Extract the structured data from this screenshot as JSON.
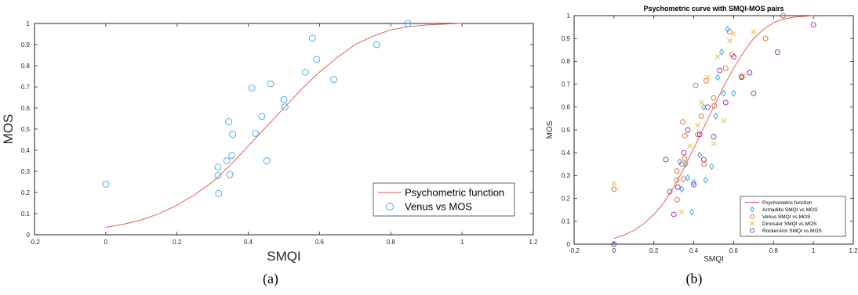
{
  "figure": {
    "caption_a": "(a)",
    "caption_b": "(b)"
  },
  "colors": {
    "curve": "#e0524a",
    "venus_a": "#3fa7e3",
    "armadillo": "#2e9bd6",
    "venus": "#e0682a",
    "dinosaur": "#eab830",
    "rockerarm": "#8a2aa8"
  },
  "chart_data": [
    {
      "type": "scatter",
      "title": "",
      "xlabel": "SMQI",
      "ylabel": "MOS",
      "xlim": [
        -0.2,
        1.2
      ],
      "ylim": [
        0,
        1
      ],
      "xticks": [
        "-0.2",
        "0",
        "0.2",
        "0.4",
        "0.6",
        "0.8",
        "1",
        "1.2"
      ],
      "yticks": [
        "0",
        "0.1",
        "0.2",
        "0.3",
        "0.4",
        "0.5",
        "0.6",
        "0.7",
        "0.8",
        "0.9",
        "1"
      ],
      "grid": false,
      "legend_position": "bottom-right",
      "curve": {
        "name": "Psychometric function",
        "x": [
          0,
          0.05,
          0.1,
          0.15,
          0.2,
          0.25,
          0.3,
          0.35,
          0.4,
          0.45,
          0.5,
          0.55,
          0.6,
          0.65,
          0.7,
          0.75,
          0.8,
          0.85,
          0.9,
          0.95,
          1.0
        ],
        "y": [
          0.035,
          0.05,
          0.07,
          0.1,
          0.14,
          0.19,
          0.25,
          0.33,
          0.42,
          0.51,
          0.6,
          0.69,
          0.77,
          0.84,
          0.9,
          0.94,
          0.97,
          0.985,
          0.993,
          0.997,
          1.0
        ]
      },
      "series": [
        {
          "name": "Venus  vs MOS",
          "marker": "circle",
          "x": [
            0.0,
            0.315,
            0.315,
            0.317,
            0.34,
            0.345,
            0.348,
            0.354,
            0.356,
            0.41,
            0.42,
            0.438,
            0.452,
            0.462,
            0.5,
            0.503,
            0.56,
            0.58,
            0.592,
            0.64,
            0.76,
            0.848
          ],
          "y": [
            0.24,
            0.32,
            0.28,
            0.195,
            0.35,
            0.535,
            0.285,
            0.375,
            0.475,
            0.695,
            0.48,
            0.56,
            0.35,
            0.715,
            0.64,
            0.605,
            0.77,
            0.93,
            0.83,
            0.735,
            0.9,
            1.0
          ]
        }
      ]
    },
    {
      "type": "scatter",
      "title": "Psychometric curve with SMQI-MOS pairs",
      "xlabel": "SMQI",
      "ylabel": "MOS",
      "xlim": [
        -0.2,
        1.2
      ],
      "ylim": [
        0,
        1
      ],
      "xticks": [
        "-0.2",
        "0",
        "0.2",
        "0.4",
        "0.6",
        "0.8",
        "1",
        "1.2"
      ],
      "yticks": [
        "0",
        "0.1",
        "0.2",
        "0.3",
        "0.4",
        "0.5",
        "0.6",
        "0.7",
        "0.8",
        "0.9",
        "1"
      ],
      "grid": false,
      "legend_position": "bottom-right",
      "curve": {
        "name": "Psychometric function",
        "x": [
          0,
          0.05,
          0.1,
          0.15,
          0.2,
          0.25,
          0.3,
          0.35,
          0.4,
          0.45,
          0.5,
          0.55,
          0.6,
          0.65,
          0.7,
          0.75,
          0.8,
          0.85,
          0.9,
          0.95,
          1.0
        ],
        "y": [
          0.025,
          0.04,
          0.06,
          0.09,
          0.13,
          0.18,
          0.25,
          0.33,
          0.42,
          0.51,
          0.6,
          0.69,
          0.77,
          0.84,
          0.9,
          0.94,
          0.97,
          0.985,
          0.993,
          0.997,
          1.0
        ]
      },
      "series": [
        {
          "name": "Armadillo SMQI vs MOS",
          "marker": "diamond",
          "x": [
            0.33,
            0.34,
            0.36,
            0.37,
            0.39,
            0.4,
            0.43,
            0.45,
            0.46,
            0.49,
            0.51,
            0.52,
            0.54,
            0.55,
            0.57,
            0.6
          ],
          "y": [
            0.36,
            0.24,
            0.35,
            0.29,
            0.14,
            0.27,
            0.39,
            0.6,
            0.28,
            0.34,
            0.56,
            0.73,
            0.84,
            0.66,
            0.94,
            0.66
          ]
        },
        {
          "name": "Venus SMQI vs MOS",
          "marker": "circle",
          "x": [
            0.0,
            0.315,
            0.315,
            0.317,
            0.34,
            0.345,
            0.348,
            0.354,
            0.356,
            0.41,
            0.42,
            0.438,
            0.452,
            0.462,
            0.5,
            0.503,
            0.56,
            0.58,
            0.592,
            0.64,
            0.76,
            0.848
          ],
          "y": [
            0.24,
            0.32,
            0.28,
            0.195,
            0.35,
            0.535,
            0.285,
            0.375,
            0.475,
            0.695,
            0.48,
            0.56,
            0.35,
            0.715,
            0.64,
            0.605,
            0.77,
            0.93,
            0.83,
            0.735,
            0.9,
            1.0
          ]
        },
        {
          "name": "Dinosaur SMQI vs MOS",
          "marker": "x",
          "x": [
            0.0,
            0.34,
            0.38,
            0.42,
            0.44,
            0.47,
            0.5,
            0.52,
            0.55,
            0.58,
            0.6,
            0.65,
            0.7
          ],
          "y": [
            0.265,
            0.14,
            0.43,
            0.52,
            0.62,
            0.73,
            0.44,
            0.82,
            0.54,
            0.89,
            0.92,
            0.74,
            0.93
          ]
        },
        {
          "name": "RockerArm SMQI vs MOS",
          "marker": "circle",
          "x": [
            0.0,
            0.26,
            0.28,
            0.3,
            0.32,
            0.35,
            0.37,
            0.4,
            0.43,
            0.45,
            0.47,
            0.5,
            0.53,
            0.56,
            0.6,
            0.64,
            0.68,
            0.7,
            0.82,
            1.0
          ],
          "y": [
            0.0,
            0.37,
            0.23,
            0.13,
            0.25,
            0.4,
            0.5,
            0.26,
            0.48,
            0.37,
            0.6,
            0.47,
            0.76,
            0.62,
            0.82,
            0.73,
            0.75,
            0.66,
            0.84,
            0.96
          ]
        }
      ]
    }
  ]
}
